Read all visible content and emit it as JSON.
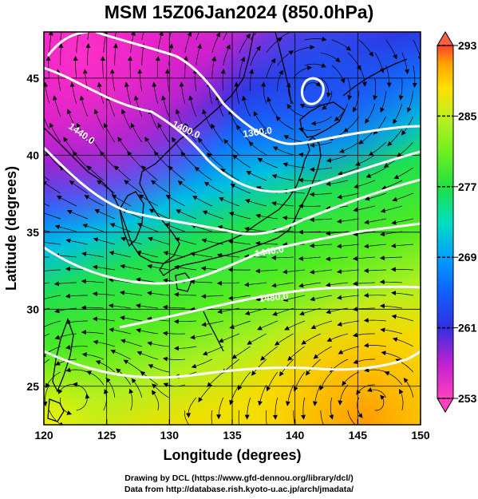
{
  "title": "MSM 15Z06Jan2024 (850.0hPa)",
  "x_axis": {
    "label": "Longitude (degrees)",
    "range": [
      120,
      150
    ],
    "ticks": [
      "120",
      "125",
      "130",
      "135",
      "140",
      "145",
      "150"
    ]
  },
  "y_axis": {
    "label": "Latitude  (degrees)",
    "range": [
      22.5,
      48
    ],
    "ticks": [
      "25",
      "30",
      "35",
      "40",
      "45"
    ]
  },
  "colorbar": {
    "ticks": [
      "253",
      "261",
      "269",
      "277",
      "285",
      "293"
    ],
    "min": 253,
    "max": 293,
    "colors": [
      "#ff40c0",
      "#c020d0",
      "#3030e0",
      "#1060ff",
      "#00a0ff",
      "#00e0c0",
      "#20e040",
      "#70f020",
      "#c0f020",
      "#ffe000",
      "#ffa000",
      "#ff4030"
    ]
  },
  "contours": [
    {
      "label": "1440.0"
    },
    {
      "label": "1400.0"
    },
    {
      "label": "1360.0"
    },
    {
      "label": "1440.0"
    },
    {
      "label": "1480.0"
    }
  ],
  "credits": {
    "line1": "Drawing by DCL (https://www.gfd-dennou.org/library/dcl/)",
    "line2": "Data from http://database.rish.kyoto-u.ac.jp/arch/jmadata/"
  }
}
